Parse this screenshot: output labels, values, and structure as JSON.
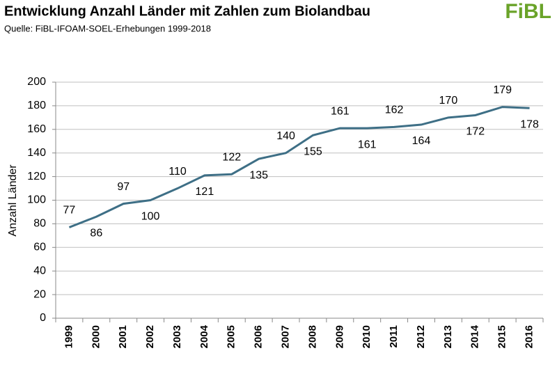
{
  "chart_data": {
    "type": "line",
    "title": "Entwicklung Anzahl Länder mit Zahlen zum Biolandbau",
    "subtitle": "Quelle: FiBL-IFOAM-SOEL-Erhebungen 1999-2018",
    "logo": "FiBL",
    "y_label": "Anzahl Länder",
    "categories": [
      "1999",
      "2000",
      "2001",
      "2002",
      "2003",
      "2004",
      "2005",
      "2006",
      "2007",
      "2008",
      "2009",
      "2010",
      "2011",
      "2012",
      "2013",
      "2014",
      "2015",
      "2016"
    ],
    "values": [
      77,
      86,
      97,
      100,
      110,
      121,
      122,
      135,
      140,
      155,
      161,
      161,
      162,
      164,
      170,
      172,
      179,
      178
    ],
    "color": "#3e6f86",
    "ylim": [
      0,
      200
    ],
    "yticks": [
      0,
      20,
      40,
      60,
      80,
      100,
      120,
      140,
      160,
      180,
      200
    ],
    "grid": true
  }
}
